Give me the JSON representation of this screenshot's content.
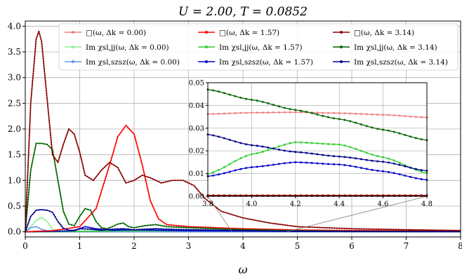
{
  "chart_data": [
    {
      "type": "line",
      "title": "U = 2.00, T = 0.0852",
      "xlabel": "ω",
      "ylabel": "",
      "xlim": [
        0,
        8
      ],
      "ylim": [
        -0.1,
        4.1
      ],
      "x_ticks": [
        "0",
        "1",
        "2",
        "3",
        "4",
        "5",
        "6",
        "7",
        "8"
      ],
      "y_ticks": [
        "0.0",
        "0.5",
        "1.0",
        "1.5",
        "2.0",
        "2.5",
        "3.0",
        "3.5",
        "4.0"
      ],
      "grid": true,
      "legend_position": "top",
      "series": [
        {
          "name": "□(ω, Δk = 0.00)",
          "color": "#f08080",
          "x": [
            0,
            1,
            2,
            3,
            4,
            5,
            6,
            7,
            8
          ],
          "y": [
            0,
            0,
            0,
            0,
            0,
            0,
            0,
            0,
            0
          ]
        },
        {
          "name": "Im χsl,jj(ω, Δk = 0.00)",
          "color": "#90ee90",
          "x": [
            0,
            0.1,
            0.2,
            0.3,
            0.4,
            0.5,
            0.6,
            0.8,
            1,
            2,
            4,
            8
          ],
          "y": [
            0,
            0.1,
            0.22,
            0.28,
            0.2,
            0.05,
            0.01,
            0,
            0,
            0,
            0,
            0
          ]
        },
        {
          "name": "Im χsl,szsz(ω, Δk = 0.00)",
          "color": "#6495ed",
          "x": [
            0,
            0.1,
            0.2,
            0.3,
            0.4,
            0.5,
            0.6,
            0.8,
            1,
            2,
            4,
            8
          ],
          "y": [
            0,
            0.08,
            0.1,
            0.05,
            0.02,
            0.01,
            0,
            0,
            0,
            0,
            0,
            0
          ]
        },
        {
          "name": "□(ω, Δk = 1.57)",
          "color": "#ff0000",
          "x": [
            0,
            0.2,
            0.5,
            1,
            1.3,
            1.55,
            1.7,
            1.85,
            2.0,
            2.15,
            2.3,
            2.45,
            2.6,
            3,
            3.5,
            4,
            5,
            6,
            7,
            8
          ],
          "y": [
            0,
            0.01,
            0.02,
            0.1,
            0.45,
            1.3,
            1.85,
            2.07,
            1.9,
            1.3,
            0.6,
            0.25,
            0.14,
            0.1,
            0.08,
            0.06,
            0.035,
            0.025,
            0.02,
            0.015
          ]
        },
        {
          "name": "Im χsl,jj(ω, Δk = 1.57)",
          "color": "#33cc33",
          "x": [
            0,
            0.5,
            1,
            2,
            3,
            4,
            5,
            6,
            7,
            8
          ],
          "y": [
            0,
            0,
            0.01,
            0.02,
            0.02,
            0.025,
            0.02,
            0.015,
            0.01,
            0.005
          ]
        },
        {
          "name": "Im χsl,szsz(ω, Δk = 1.57)",
          "color": "#0000cc",
          "x": [
            0,
            0.5,
            0.9,
            1.1,
            1.3,
            1.6,
            2,
            3,
            4,
            5,
            6,
            7,
            8
          ],
          "y": [
            0,
            0.01,
            0.02,
            0.1,
            0.06,
            0.03,
            0.04,
            0.02,
            0.015,
            0.01,
            0.008,
            0.005,
            0.004
          ]
        },
        {
          "name": "□(ω, Δk = 3.14)",
          "color": "#8b0000",
          "x": [
            0,
            0.1,
            0.2,
            0.25,
            0.3,
            0.4,
            0.5,
            0.6,
            0.7,
            0.8,
            0.9,
            1.0,
            1.1,
            1.25,
            1.4,
            1.55,
            1.7,
            1.85,
            2.0,
            2.15,
            2.3,
            2.5,
            2.7,
            2.9,
            3.1,
            3.3,
            3.6,
            4,
            4.5,
            5,
            6,
            7,
            8
          ],
          "y": [
            0,
            2.5,
            3.75,
            3.9,
            3.7,
            2.6,
            1.5,
            1.35,
            1.7,
            2.0,
            1.9,
            1.55,
            1.1,
            1.0,
            1.2,
            1.35,
            1.25,
            0.95,
            1.0,
            1.1,
            1.05,
            0.95,
            1.0,
            1.0,
            0.9,
            0.65,
            0.4,
            0.27,
            0.17,
            0.1,
            0.06,
            0.04,
            0.025
          ]
        },
        {
          "name": "Im χsl,jj(ω, Δk = 3.14)",
          "color": "#006400",
          "x": [
            0,
            0.1,
            0.2,
            0.3,
            0.4,
            0.5,
            0.6,
            0.7,
            0.8,
            0.9,
            1.0,
            1.1,
            1.2,
            1.3,
            1.4,
            1.5,
            1.6,
            1.7,
            1.8,
            1.9,
            2.0,
            2.2,
            2.4,
            2.6,
            3,
            3.8,
            4.2,
            4.8,
            6,
            8
          ],
          "y": [
            0,
            1.2,
            1.72,
            1.72,
            1.7,
            1.6,
            1.0,
            0.4,
            0.15,
            0.12,
            0.3,
            0.45,
            0.42,
            0.2,
            0.08,
            0.06,
            0.1,
            0.15,
            0.17,
            0.1,
            0.08,
            0.12,
            0.14,
            0.1,
            0.08,
            0.047,
            0.038,
            0.025,
            0.012,
            0.005
          ]
        },
        {
          "name": "Im χsl,szsz(ω, Δk = 3.14)",
          "color": "#00008b",
          "x": [
            0,
            0.1,
            0.2,
            0.3,
            0.4,
            0.5,
            0.6,
            0.7,
            0.8,
            0.9,
            1.0,
            1.2,
            1.4,
            1.6,
            1.8,
            2.0,
            2.2,
            2.4,
            2.6,
            3,
            3.8,
            4.2,
            4.8,
            6,
            8
          ],
          "y": [
            0,
            0.3,
            0.42,
            0.43,
            0.42,
            0.38,
            0.2,
            0.07,
            0.03,
            0.03,
            0.06,
            0.05,
            0.03,
            0.05,
            0.06,
            0.04,
            0.05,
            0.06,
            0.05,
            0.04,
            0.027,
            0.02,
            0.011,
            0.006,
            0.003
          ]
        }
      ]
    },
    {
      "type": "line",
      "title": "",
      "xlabel": "",
      "ylabel": "",
      "xlim": [
        3.8,
        4.8
      ],
      "ylim": [
        0,
        0.05
      ],
      "x_ticks": [
        "3.8",
        "4.0",
        "4.2",
        "4.4",
        "4.6",
        "4.8"
      ],
      "y_ticks": [
        "0.00",
        "0.01",
        "0.02",
        "0.03",
        "0.04",
        "0.05"
      ],
      "grid": true,
      "series": [
        {
          "color": "#f08080",
          "x": [
            3.8,
            4.0,
            4.2,
            4.4,
            4.6,
            4.8
          ],
          "y": [
            0.0362,
            0.0368,
            0.037,
            0.0366,
            0.0359,
            0.0347
          ]
        },
        {
          "color": "#006400",
          "x": [
            3.8,
            4.0,
            4.2,
            4.4,
            4.6,
            4.8
          ],
          "y": [
            0.047,
            0.0425,
            0.038,
            0.034,
            0.0293,
            0.0247
          ]
        },
        {
          "color": "#33cc33",
          "x": [
            3.8,
            4.0,
            4.2,
            4.4,
            4.6,
            4.8
          ],
          "y": [
            0.0098,
            0.0185,
            0.0238,
            0.0228,
            0.0172,
            0.0102
          ]
        },
        {
          "color": "#0000cc",
          "x": [
            3.8,
            4.0,
            4.2,
            4.4,
            4.6,
            4.8
          ],
          "y": [
            0.0088,
            0.0128,
            0.015,
            0.014,
            0.011,
            0.0072
          ]
        },
        {
          "color": "#00008b",
          "x": [
            3.8,
            4.0,
            4.2,
            4.4,
            4.6,
            4.8
          ],
          "y": [
            0.0272,
            0.0225,
            0.0195,
            0.0175,
            0.0152,
            0.0112
          ]
        },
        {
          "color": "#90ee90",
          "x": [
            3.8,
            4.0,
            4.2,
            4.4,
            4.6,
            4.8
          ],
          "y": [
            0.0003,
            0.0003,
            0.0003,
            0.0003,
            0.0003,
            0.0003
          ]
        },
        {
          "color": "#6495ed",
          "x": [
            3.8,
            4.0,
            4.2,
            4.4,
            4.6,
            4.8
          ],
          "y": [
            0.0001,
            0.0001,
            0.0001,
            0.0001,
            0.0001,
            0.0001
          ]
        },
        {
          "color": "#ff0000",
          "x": [
            3.8,
            4.0,
            4.2,
            4.4,
            4.6,
            4.8
          ],
          "y": [
            0.0002,
            0.0002,
            0.0002,
            0.0002,
            0.0002,
            0.0002
          ]
        },
        {
          "color": "#8b0000",
          "x": [
            3.8,
            4.0,
            4.2,
            4.4,
            4.6,
            4.8
          ],
          "y": [
            0.0004,
            0.0004,
            0.0004,
            0.0004,
            0.0004,
            0.0004
          ]
        }
      ]
    }
  ]
}
